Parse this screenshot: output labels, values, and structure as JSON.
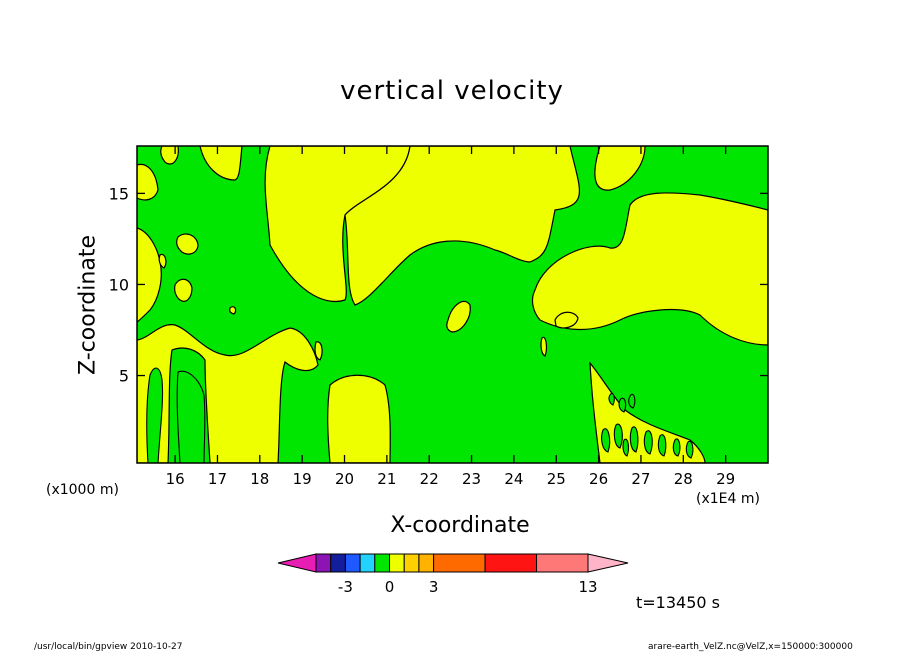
{
  "chart_data": {
    "type": "contour",
    "title": "vertical velocity",
    "xlabel": "X-coordinate",
    "ylabel": "Z-coordinate",
    "x_unit_left": "(x1000 m)",
    "x_unit_right": "(x1E4 m)",
    "x_ticks": [
      16,
      17,
      18,
      19,
      20,
      21,
      22,
      23,
      24,
      25,
      26,
      27,
      28,
      29
    ],
    "y_ticks": [
      5,
      10,
      15
    ],
    "xlim": [
      15.1,
      30.0
    ],
    "ylim": [
      0.2,
      17.6
    ],
    "colorbar": {
      "tick_labels": [
        {
          "value": -3,
          "label": "-3"
        },
        {
          "value": 0,
          "label": "0"
        },
        {
          "value": 3,
          "label": "3"
        },
        {
          "value": 13,
          "label": "13"
        }
      ],
      "bins": [
        {
          "from": -5,
          "to": -4,
          "color": "#8c14b4"
        },
        {
          "from": -4,
          "to": -3,
          "color": "#141e9c"
        },
        {
          "from": -3,
          "to": -2,
          "color": "#1e5aff"
        },
        {
          "from": -2,
          "to": -1,
          "color": "#23d2ff"
        },
        {
          "from": -1,
          "to": 0,
          "color": "#00e600"
        },
        {
          "from": 0,
          "to": 1,
          "color": "#eeff00"
        },
        {
          "from": 1,
          "to": 2,
          "color": "#ffd000"
        },
        {
          "from": 2,
          "to": 3,
          "color": "#ffb200"
        },
        {
          "from": 3,
          "to": 6,
          "color": "#ff6a00"
        },
        {
          "from": 6,
          "to": 10,
          "color": "#ff1414"
        },
        {
          "from": 10,
          "to": 13,
          "color": "#ff7878"
        }
      ],
      "under_color": "#e81eb4",
      "over_color": "#ffb4c8"
    },
    "fill_colors": {
      "negative": "#00e600",
      "positive": "#eeff00"
    },
    "time_label": "t=13450 s"
  },
  "footer": {
    "left": "/usr/local/bin/gpview  2010-10-27",
    "right": "arare-earth_VelZ.nc@VelZ,x=150000:300000"
  }
}
